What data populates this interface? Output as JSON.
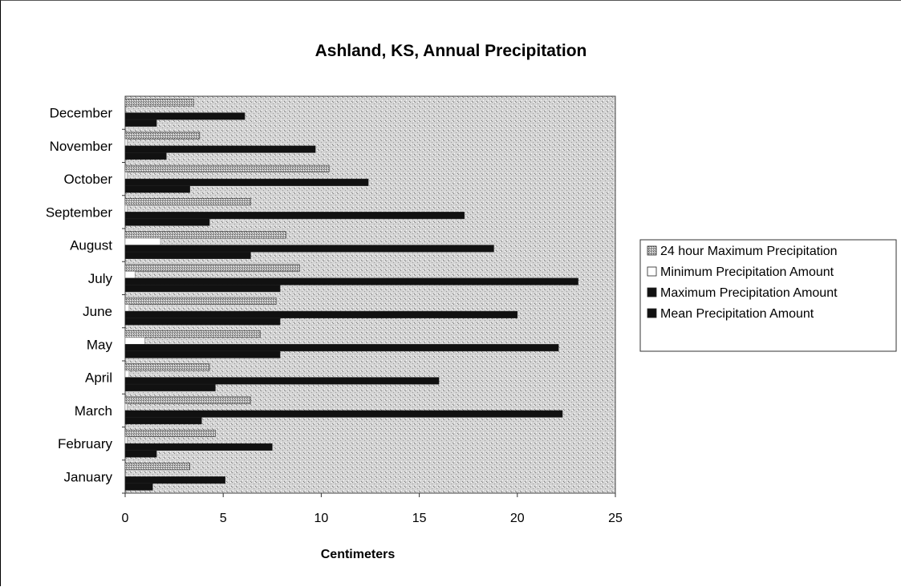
{
  "chart_data": {
    "type": "bar",
    "orientation": "horizontal",
    "title": "Ashland, KS, Annual Precipitation",
    "xlabel": "Centimeters",
    "ylabel": "",
    "xlim": [
      0,
      25
    ],
    "x_ticks": [
      0,
      5,
      10,
      15,
      20,
      25
    ],
    "legend_position": "right",
    "categories": [
      "January",
      "February",
      "March",
      "April",
      "May",
      "June",
      "July",
      "August",
      "September",
      "October",
      "November",
      "December"
    ],
    "series": [
      {
        "name": "24 hour Maximum Precipitation",
        "color": "#9a9a9a",
        "pattern": "dotted",
        "values": [
          3.3,
          4.6,
          6.4,
          4.3,
          6.9,
          7.7,
          8.9,
          8.2,
          6.4,
          10.4,
          3.8,
          3.5
        ]
      },
      {
        "name": "Minimum Precipitation Amount",
        "color": "#ffffff",
        "pattern": "none",
        "values": [
          0.0,
          0.1,
          0.1,
          0.2,
          1.0,
          0.2,
          0.5,
          1.8,
          0.1,
          0.1,
          0.1,
          0.0
        ]
      },
      {
        "name": "Maximum Precipitation Amount",
        "color": "#111111",
        "pattern": "solid",
        "values": [
          5.1,
          7.5,
          22.3,
          16.0,
          22.1,
          20.0,
          23.1,
          18.8,
          17.3,
          12.4,
          9.7,
          6.1
        ]
      },
      {
        "name": "Mean Precipitation Amount",
        "color": "#111111",
        "pattern": "solid",
        "values": [
          1.4,
          1.6,
          3.9,
          4.6,
          7.9,
          7.9,
          7.9,
          6.4,
          4.3,
          3.3,
          2.1,
          1.6
        ]
      }
    ]
  }
}
